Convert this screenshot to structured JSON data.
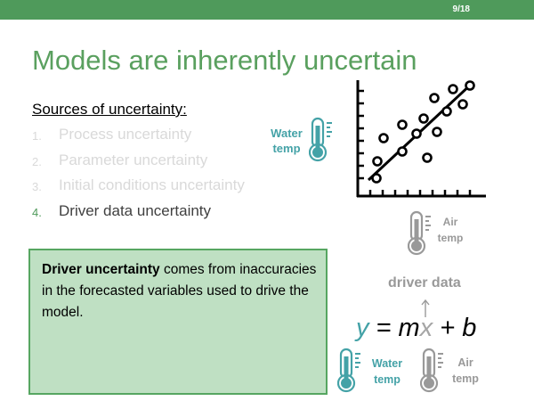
{
  "header": {
    "page_number": "9/18",
    "bar_color": "#4f9a5b"
  },
  "title": "Models are inherently uncertain",
  "sources": {
    "heading": "Sources of uncertainty:",
    "items": [
      {
        "num": "1.",
        "label": "Process uncertainty",
        "state": "faded"
      },
      {
        "num": "2.",
        "label": "Parameter uncertainty",
        "state": "faded"
      },
      {
        "num": "3.",
        "label": "Initial conditions uncertainty",
        "state": "faded"
      },
      {
        "num": "4.",
        "label": "Driver data uncertainty",
        "state": "active"
      }
    ]
  },
  "callout": {
    "bold": "Driver uncertainty",
    "text": " comes from inaccuracies in the forecasted variables used to drive the model.",
    "background": "#bfe0c3",
    "border": "#56a661"
  },
  "diagram": {
    "water_temp_label_line1": "Water",
    "water_temp_label_line2": "temp",
    "air_temp_label_line1": "Air",
    "air_temp_label_line2": "temp",
    "driver_data_label": "driver data",
    "equation": {
      "y": "y",
      "eq": " = m",
      "x": "x",
      "rest": " + b"
    },
    "water_color": "#44a2a7",
    "air_color": "#999999",
    "icons": [
      "thermometer-icon",
      "scatter-plot-icon",
      "arrow-up-icon"
    ]
  }
}
